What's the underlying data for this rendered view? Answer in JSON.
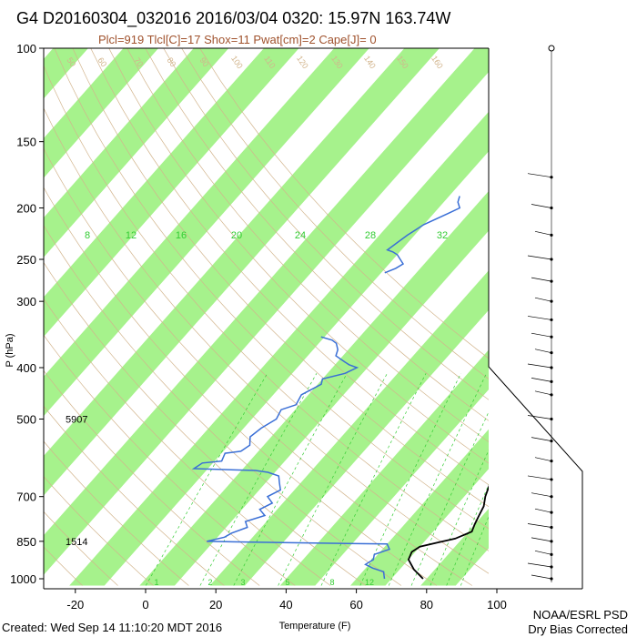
{
  "title": "G4 D20160304_032016 2016/03/04 0320: 15.97N 163.74W",
  "subtitle": "Plcl=919 Tlcl[C]=17 Shox=11 Pwat[cm]=2 Cape[J]= 0",
  "footer": {
    "created": "Created: Wed Sep 14 11:10:20 MDT 2016",
    "credit_line1": "NOAA/ESRL PSD",
    "credit_line2": "Dry Bias Corrected"
  },
  "colors": {
    "band": "#a6f28c",
    "temperature": "#000000",
    "dewpoint": "#3a6fd6",
    "dry_adiabat": "#d2b48c",
    "mixing_ratio": "#33cc33",
    "height_label": "#000000"
  },
  "chart_data": {
    "type": "line",
    "title": "",
    "xlabel": "Temperature (F)",
    "ylabel": "P (hPa)",
    "xlim": [
      -30,
      110
    ],
    "ylim": [
      1030,
      100
    ],
    "y_scale": "log",
    "x_ticks": [
      -20,
      0,
      20,
      40,
      60,
      80,
      100
    ],
    "y_ticks": [
      100,
      150,
      200,
      250,
      300,
      400,
      500,
      700,
      850,
      1000
    ],
    "height_labels": [
      {
        "pressure": 500,
        "label": "5907"
      },
      {
        "pressure": 850,
        "label": "1514"
      }
    ],
    "mixing_ratio_labels": [
      {
        "label": "8",
        "x": 12
      },
      {
        "label": "12",
        "x": 25
      },
      {
        "label": "16",
        "x": 38
      },
      {
        "label": "20",
        "x": 52
      },
      {
        "label": "24",
        "x": 70
      },
      {
        "label": "28",
        "x": 90
      },
      {
        "label": "32",
        "x": 110
      }
    ],
    "mixing_ratio_bottom_labels": [
      "1",
      "2",
      "3",
      "5",
      "8",
      "12"
    ],
    "dry_adiabat_labels": [
      "50",
      "60",
      "70",
      "80",
      "90",
      "100",
      "110",
      "120",
      "130",
      "140",
      "150",
      "160"
    ],
    "series": [
      {
        "name": "",
        "role": "temperature",
        "points": [
          [
            79,
            1000
          ],
          [
            74,
            960
          ],
          [
            70,
            920
          ],
          [
            69,
            890
          ],
          [
            70,
            870
          ],
          [
            74,
            855
          ],
          [
            78,
            840
          ],
          [
            81,
            815
          ],
          [
            80,
            790
          ],
          [
            79,
            760
          ],
          [
            78,
            730
          ],
          [
            76,
            700
          ],
          [
            75,
            680
          ],
          [
            74,
            660
          ],
          [
            75,
            640
          ],
          [
            73,
            620
          ],
          [
            74,
            600
          ],
          [
            73,
            570
          ],
          [
            74,
            550
          ],
          [
            72,
            520
          ],
          [
            71,
            500
          ],
          [
            69,
            480
          ],
          [
            68,
            460
          ],
          [
            67,
            440
          ],
          [
            65,
            420
          ],
          [
            62,
            400
          ],
          [
            59,
            380
          ],
          [
            58,
            360
          ],
          [
            57,
            350
          ],
          [
            55,
            330
          ],
          [
            52,
            310
          ],
          [
            49,
            290
          ],
          [
            46,
            270
          ],
          [
            43,
            250
          ],
          [
            40,
            230
          ],
          [
            37,
            215
          ],
          [
            35,
            200
          ],
          [
            33,
            190
          ],
          [
            31,
            180
          ],
          [
            30,
            170
          ]
        ]
      },
      {
        "name": "",
        "role": "dewpoint",
        "points": [
          [
            68,
            1000
          ],
          [
            67,
            985
          ],
          [
            66,
            970
          ],
          [
            62,
            955
          ],
          [
            59,
            940
          ],
          [
            60,
            920
          ],
          [
            59,
            900
          ],
          [
            62,
            880
          ],
          [
            60,
            860
          ],
          [
            30,
            855
          ],
          [
            8,
            850
          ],
          [
            12,
            835
          ],
          [
            13,
            820
          ],
          [
            16,
            800
          ],
          [
            14,
            780
          ],
          [
            18,
            760
          ],
          [
            15,
            740
          ],
          [
            17,
            720
          ],
          [
            14,
            700
          ],
          [
            16,
            680
          ],
          [
            14,
            660
          ],
          [
            12,
            640
          ],
          [
            8,
            630
          ],
          [
            4,
            625
          ],
          [
            -14,
            620
          ],
          [
            -13,
            605
          ],
          [
            -8,
            600
          ],
          [
            -9,
            580
          ],
          [
            -5,
            575
          ],
          [
            -4,
            560
          ],
          [
            -6,
            540
          ],
          [
            -5,
            520
          ],
          [
            -3,
            500
          ],
          [
            -4,
            480
          ],
          [
            -1,
            470
          ],
          [
            -2,
            450
          ],
          [
            1,
            430
          ],
          [
            0,
            420
          ],
          [
            5,
            410
          ],
          [
            7,
            400
          ],
          [
            4,
            395
          ],
          [
            2,
            390
          ],
          [
            -2,
            380
          ],
          [
            -3,
            370
          ],
          [
            -5,
            360
          ],
          [
            -7,
            355
          ],
          [
            -11,
            350
          ]
        ]
      },
      {
        "name": "",
        "role": "dewpoint-upper",
        "points": [
          [
            -9,
            265
          ],
          [
            -7,
            260
          ],
          [
            -6,
            255
          ],
          [
            -8,
            250
          ],
          [
            -10,
            245
          ],
          [
            -12,
            242
          ],
          [
            -14,
            240
          ],
          [
            -13,
            232
          ],
          [
            -12,
            225
          ],
          [
            -10,
            215
          ],
          [
            -6,
            205
          ],
          [
            -4,
            200
          ],
          [
            -6,
            195
          ],
          [
            -7,
            190
          ]
        ]
      }
    ],
    "wind_barbs": {
      "pressures": [
        175,
        200,
        225,
        250,
        275,
        300,
        325,
        350,
        375,
        400,
        425,
        450,
        500,
        550,
        600,
        650,
        700,
        750,
        800,
        850,
        900,
        950,
        1000
      ]
    }
  }
}
